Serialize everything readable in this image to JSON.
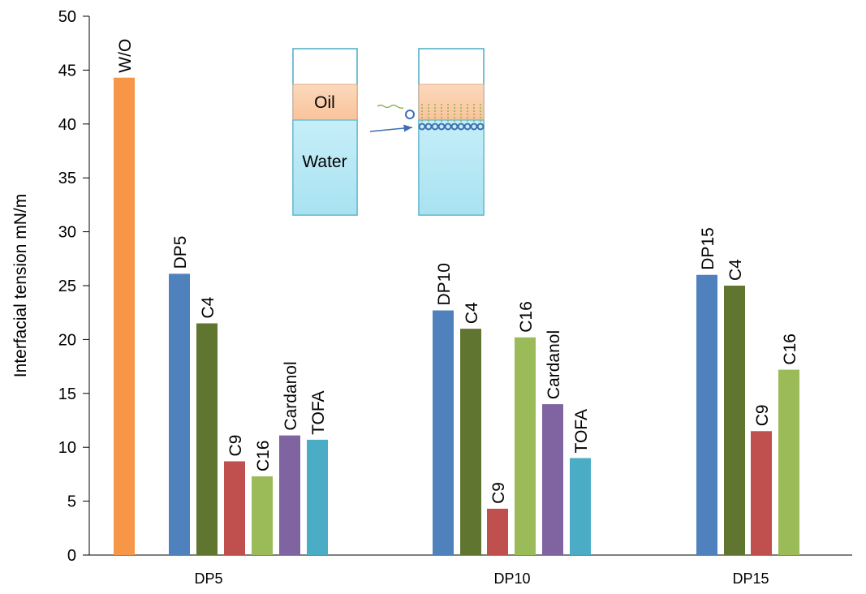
{
  "chart_data": {
    "type": "bar",
    "y_label": "Interfacial tension mN/m",
    "ylim": [
      0,
      50
    ],
    "yticks": [
      0,
      5,
      10,
      15,
      20,
      25,
      30,
      35,
      40,
      45,
      50
    ],
    "categories": [
      "DP5",
      "DP10",
      "DP15"
    ],
    "groups": [
      {
        "bars": [
          {
            "label": "W/O",
            "value": 44.3,
            "color": "#f79646"
          },
          {
            "label": "DP5",
            "value": 26.1,
            "color": "#4f81bd"
          },
          {
            "label": "C4",
            "value": 21.5,
            "color": "#5f7530"
          },
          {
            "label": "C9",
            "value": 8.7,
            "color": "#c0504d"
          },
          {
            "label": "C16",
            "value": 7.3,
            "color": "#9bbb59"
          },
          {
            "label": "Cardanol",
            "value": 11.1,
            "color": "#8064a2"
          },
          {
            "label": "TOFA",
            "value": 10.7,
            "color": "#4bacc6"
          }
        ]
      },
      {
        "bars": [
          {
            "label": "DP10",
            "value": 22.7,
            "color": "#4f81bd"
          },
          {
            "label": "C4",
            "value": 21.0,
            "color": "#5f7530"
          },
          {
            "label": "C9",
            "value": 4.3,
            "color": "#c0504d"
          },
          {
            "label": "C16",
            "value": 20.2,
            "color": "#9bbb59"
          },
          {
            "label": "Cardanol",
            "value": 14.0,
            "color": "#8064a2"
          },
          {
            "label": "TOFA",
            "value": 9.0,
            "color": "#4bacc6"
          }
        ]
      },
      {
        "bars": [
          {
            "label": "DP15",
            "value": 26.0,
            "color": "#4f81bd"
          },
          {
            "label": "C4",
            "value": 25.0,
            "color": "#5f7530"
          },
          {
            "label": "C9",
            "value": 11.5,
            "color": "#c0504d"
          },
          {
            "label": "C16",
            "value": 17.2,
            "color": "#9bbb59"
          }
        ]
      }
    ],
    "inset": {
      "oil": "Oil",
      "water": "Water"
    }
  }
}
